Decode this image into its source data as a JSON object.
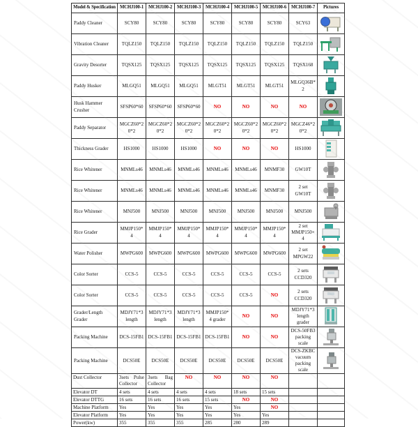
{
  "colors": {
    "border": "#2e2e2e",
    "no_value": "#e60000",
    "text": "#151515",
    "background": "#ffffff"
  },
  "table": {
    "columns": [
      "Model & Specification",
      "MCHJ100-1",
      "MCHJ100-2",
      "MCHJ100-3",
      "MCHJ100-4",
      "MCHJ100-5",
      "MCHJ100-6",
      "MCHJ100-7",
      "Pictures"
    ],
    "rows": [
      {
        "kind": "equipment",
        "label": "Paddy Cleaner",
        "values": [
          "SCY80",
          "SCY80",
          "SCY80",
          "SCY80",
          "SCY80",
          "SCY80",
          "SCY63"
        ],
        "picture": {
          "icon": "paddy-cleaner-photo",
          "variant": "drum",
          "c1": "#ece7da",
          "c2": "#3a6fd8"
        }
      },
      {
        "kind": "equipment",
        "label": "Vibration Cleaner",
        "values": [
          "TQLZ150",
          "TQLZ150",
          "TQLZ150",
          "TQLZ150",
          "TQLZ150",
          "TQLZ150",
          "TQLZ150"
        ],
        "picture": {
          "icon": "vibration-cleaner-photo",
          "variant": "frame",
          "c1": "#b9bdbd",
          "c2": "#2ea06a"
        }
      },
      {
        "kind": "equipment",
        "label": "Gravity Desorter",
        "values": [
          "TQSX125",
          "TQSX125",
          "TQSX125",
          "TQSX125",
          "TQSX125",
          "TQSX125",
          "TQSX168"
        ],
        "picture": {
          "icon": "gravity-desorter-photo",
          "variant": "hopper",
          "c1": "#3aa99f",
          "c2": "#2b8f86"
        }
      },
      {
        "kind": "equipment",
        "label": "Paddy Husker",
        "values": [
          "MLGQ51",
          "MLGQ51",
          "MLGQ51",
          "MLGT51",
          "MLGT51",
          "MLGT51",
          "MLGQ36B*2"
        ],
        "picture": {
          "icon": "paddy-husker-photo",
          "variant": "tall",
          "c1": "#2fa396",
          "c2": "#217d73"
        }
      },
      {
        "kind": "equipment",
        "label": "Husk Hammer Crusher",
        "values": [
          "SFSP60*60",
          "SFSP60*60",
          "SFSP60*60",
          "NO",
          "NO",
          "NO",
          "NO"
        ],
        "picture": {
          "icon": "husk-hammer-crusher-photo",
          "variant": "crusher",
          "c1": "#cfd4d4",
          "c2": "#3f9c5a"
        }
      },
      {
        "kind": "equipment",
        "label": "Paddy Separator",
        "values": [
          "MGCZ60*20*2",
          "MGCZ60*20*2",
          "MGCZ60*20*2",
          "MGCZ60*20*2",
          "MGCZ60*20*2",
          "MGCZ60*20*2",
          "MGCZ46*20*2"
        ],
        "picture": {
          "icon": "paddy-separator-photo",
          "variant": "wide",
          "c1": "#45b3a8",
          "c2": "#2e968c"
        }
      },
      {
        "kind": "equipment",
        "label": "Thickness Grader",
        "values": [
          "HS1000",
          "HS1000",
          "HS1000",
          "NO",
          "NO",
          "NO",
          "HS1000"
        ],
        "picture": {
          "icon": "thickness-grader-photo",
          "variant": "cabinet",
          "c1": "#f2f1ec",
          "c2": "#4db6ac"
        }
      },
      {
        "kind": "equipment",
        "label": "Rice Whitener",
        "values": [
          "MNMLs46",
          "MNMLs46",
          "MNMLs46",
          "MNMLs46",
          "MNMLs46",
          "MNMF30",
          "GW10T"
        ],
        "picture": {
          "icon": "rice-whitener-photo",
          "variant": "whitener",
          "c1": "#a9a9a9",
          "c2": "#8b8b8b"
        }
      },
      {
        "kind": "equipment",
        "label": "Rice Whitener",
        "values": [
          "MNMLs46",
          "MNMLs46",
          "MNMLs46",
          "MNMLs46",
          "MNMLs46",
          "MNMF30",
          "2 set GW10T"
        ],
        "picture": {
          "icon": "rice-whitener-photo",
          "variant": "whitener",
          "c1": "#a9a9a9",
          "c2": "#8b8b8b"
        }
      },
      {
        "kind": "equipment",
        "label": "Rice Whitener",
        "values": [
          "MNJ500",
          "MNJ500",
          "MNJ500",
          "MNJ500",
          "MNJ500",
          "MNJ500",
          "MNJ500"
        ],
        "picture": {
          "icon": "rice-whitener-photo",
          "variant": "engine",
          "c1": "#b3b3b3",
          "c2": "#8f8f8f"
        }
      },
      {
        "kind": "equipment",
        "label": "Rice Grader",
        "values": [
          "MMJP150*4",
          "MMJP150*4",
          "MMJP150*4",
          "MMJP150*4",
          "MMJP150*4",
          "MMJP150*4",
          "2 set MMJP150×4"
        ],
        "picture": {
          "icon": "rice-grader-photo",
          "variant": "grader",
          "c1": "#eceff0",
          "c2": "#3aa99f"
        }
      },
      {
        "kind": "equipment",
        "label": "Water Polisher",
        "values": [
          "MWPG600",
          "MWPG600",
          "MWPG600",
          "MWPG600",
          "MWPG600",
          "MWPG600",
          "2 set MPGW22"
        ],
        "picture": {
          "icon": "water-polisher-photo",
          "variant": "polisher",
          "c1": "#3fae9d",
          "c2": "#e8d44d"
        }
      },
      {
        "kind": "equipment",
        "label": "Color Sorter",
        "values": [
          "CCS-5",
          "CCS-5",
          "CCS-5",
          "CCS-5",
          "CCS-5",
          "CCS-5",
          "2 sets CCD320"
        ],
        "picture": {
          "icon": "color-sorter-photo",
          "variant": "sorter",
          "c1": "#e8e8e8",
          "c2": "#5a5a5a"
        }
      },
      {
        "kind": "equipment",
        "label": "Color Sorter",
        "values": [
          "CCS-5",
          "CCS-5",
          "CCS-5",
          "CCS-5",
          "CCS-5",
          "NO",
          "2 sets CCD320"
        ],
        "picture": {
          "icon": "color-sorter-photo",
          "variant": "sorter",
          "c1": "#e8e8e8",
          "c2": "#5a5a5a"
        }
      },
      {
        "kind": "equipment",
        "label": "Grader/Length Grader",
        "values": [
          "MDJY71*3 length",
          "MDJY71*3 length",
          "MDJY71*3 length",
          "MMJP150*4 grader",
          "NO",
          "NO",
          "MDJY71*3 length grader"
        ],
        "picture": {
          "icon": "length-grader-photo",
          "variant": "panels",
          "c1": "#d9e4e2",
          "c2": "#4db6ac"
        }
      },
      {
        "kind": "equipment",
        "label": "Packing Machine",
        "values": [
          "DCS-15FB1",
          "DCS-15FB1",
          "DCS-15FB1",
          "DCS-15FB1",
          "NO",
          "NO",
          "DCS-50FB3 packing scale"
        ],
        "picture": {
          "icon": "packing-machine-photo",
          "variant": "packer",
          "c1": "#c9cecf",
          "c2": "#8f9a9a"
        }
      },
      {
        "kind": "equipment",
        "label": "Packing Machine",
        "values": [
          "DCS50E",
          "DCS50E",
          "DCS50E",
          "DCS50E",
          "DCS50E",
          "DCS50E",
          "DCS-ZKBC vacuum packing scale"
        ],
        "picture": {
          "icon": "packing-machine-photo",
          "variant": "packer",
          "c1": "#b5bcbd",
          "c2": "#7e8889"
        }
      },
      {
        "kind": "dust",
        "label": "Dust Collector",
        "values": [
          "3sets Pulse Collector",
          "3sets Bag Collector",
          "NO",
          "NO",
          "NO",
          "NO",
          ""
        ],
        "picture": null
      },
      {
        "kind": "compact",
        "label": "Elevator DT",
        "values": [
          "4 sets",
          "4 sets",
          "4 sets",
          "4 sets",
          "18 sets",
          "15 sets",
          ""
        ],
        "picture": null
      },
      {
        "kind": "compact",
        "label": "Elevator DTTG",
        "values": [
          "16 sets",
          "16 sets",
          "16 sets",
          "15 sets",
          "NO",
          "NO",
          ""
        ],
        "picture": null
      },
      {
        "kind": "compact",
        "label": "Machine Platform",
        "values": [
          "Yes",
          "Yes",
          "Yes",
          "Yes",
          "Yes",
          "NO",
          ""
        ],
        "picture": null
      },
      {
        "kind": "compact",
        "label": "Elevator Platform",
        "values": [
          "Yes",
          "Yes",
          "Yes",
          "Yes",
          "Yes",
          "Yes",
          ""
        ],
        "picture": null
      },
      {
        "kind": "compact",
        "label": "Power(kw)",
        "values": [
          "355",
          "355",
          "355",
          "285",
          "280",
          "289",
          ""
        ],
        "picture": null
      }
    ]
  }
}
